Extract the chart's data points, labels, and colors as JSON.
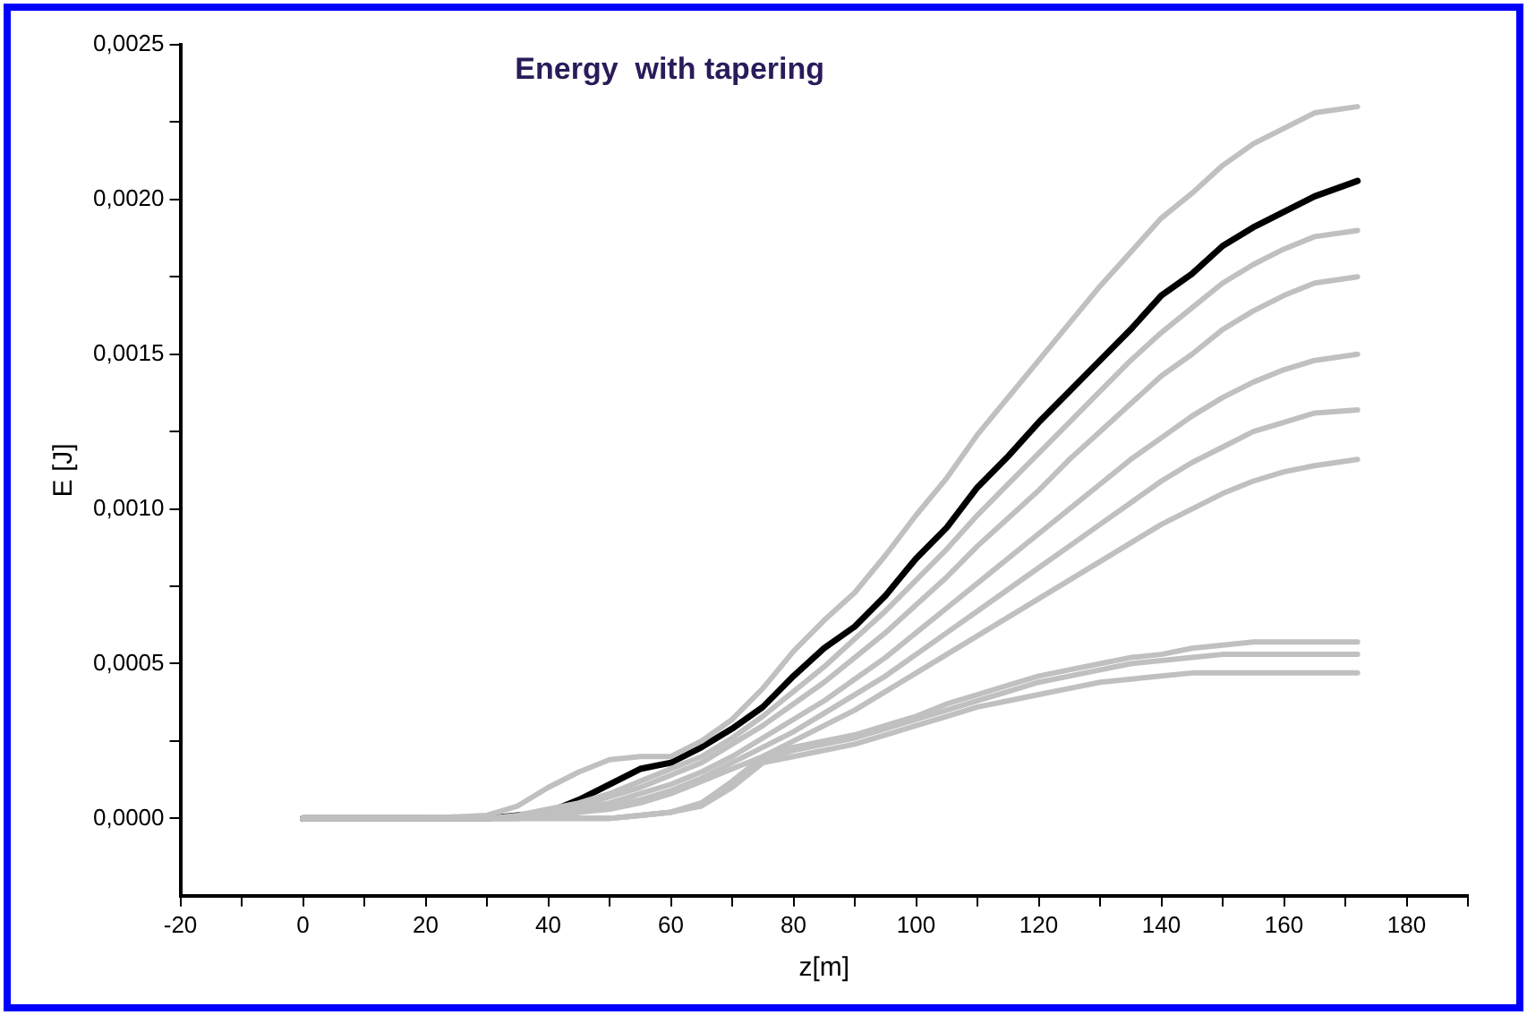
{
  "chart_data": {
    "type": "line",
    "title": "Energy  with tapering",
    "xlabel": "z[m]",
    "ylabel": "E [J]",
    "x": [
      0,
      10,
      20,
      30,
      35,
      40,
      45,
      50,
      55,
      60,
      65,
      70,
      75,
      80,
      85,
      90,
      95,
      100,
      105,
      110,
      115,
      120,
      125,
      130,
      135,
      140,
      145,
      150,
      155,
      160,
      165,
      172
    ],
    "series": [
      {
        "color": "#c0c0c0",
        "values": [
          0,
          0,
          0,
          1e-05,
          4e-05,
          0.0001,
          0.00015,
          0.00019,
          0.0002,
          0.0002,
          0.00025,
          0.00032,
          0.00042,
          0.00054,
          0.00064,
          0.00073,
          0.00085,
          0.00098,
          0.0011,
          0.00124,
          0.00136,
          0.00148,
          0.0016,
          0.00172,
          0.00183,
          0.00194,
          0.00202,
          0.00211,
          0.00218,
          0.00223,
          0.00228,
          0.0023
        ]
      },
      {
        "color": "#c0c0c0",
        "values": [
          0,
          0,
          0,
          0,
          1e-05,
          3e-05,
          5e-05,
          8e-05,
          0.00012,
          0.00016,
          0.0002,
          0.00026,
          0.00033,
          0.00041,
          0.00049,
          0.00058,
          0.00067,
          0.00077,
          0.00087,
          0.00098,
          0.00108,
          0.00118,
          0.00128,
          0.00138,
          0.00148,
          0.00157,
          0.00165,
          0.00173,
          0.00179,
          0.00184,
          0.00188,
          0.0019
        ]
      },
      {
        "color": "#c0c0c0",
        "values": [
          0,
          0,
          0,
          0,
          0,
          2e-05,
          4e-05,
          7e-05,
          0.0001,
          0.00014,
          0.00018,
          0.00024,
          0.0003,
          0.00037,
          0.00044,
          0.00052,
          0.0006,
          0.00069,
          0.00078,
          0.00088,
          0.00097,
          0.00106,
          0.00116,
          0.00125,
          0.00134,
          0.00143,
          0.0015,
          0.00158,
          0.00164,
          0.00169,
          0.00173,
          0.00175
        ]
      },
      {
        "color": "#c0c0c0",
        "values": [
          0,
          0,
          0,
          0,
          0,
          1e-05,
          3e-05,
          5e-05,
          8e-05,
          0.00011,
          0.00015,
          0.0002,
          0.00026,
          0.00032,
          0.00038,
          0.00045,
          0.00052,
          0.0006,
          0.00068,
          0.00076,
          0.00084,
          0.00092,
          0.001,
          0.00108,
          0.00116,
          0.00123,
          0.0013,
          0.00136,
          0.00141,
          0.00145,
          0.00148,
          0.0015
        ]
      },
      {
        "color": "#c0c0c0",
        "values": [
          0,
          0,
          0,
          0,
          0,
          1e-05,
          2e-05,
          4e-05,
          6e-05,
          9e-05,
          0.00013,
          0.00018,
          0.00023,
          0.00028,
          0.00034,
          0.0004,
          0.00046,
          0.00053,
          0.0006,
          0.00067,
          0.00074,
          0.00081,
          0.00088,
          0.00095,
          0.00102,
          0.00109,
          0.00115,
          0.0012,
          0.00125,
          0.00128,
          0.00131,
          0.00132
        ]
      },
      {
        "color": "#c0c0c0",
        "values": [
          0,
          0,
          0,
          0,
          0,
          1e-05,
          2e-05,
          3e-05,
          5e-05,
          8e-05,
          0.00012,
          0.00016,
          0.0002,
          0.00025,
          0.0003,
          0.00035,
          0.00041,
          0.00047,
          0.00053,
          0.00059,
          0.00065,
          0.00071,
          0.00077,
          0.00083,
          0.00089,
          0.00095,
          0.001,
          0.00105,
          0.00109,
          0.00112,
          0.00114,
          0.00116
        ]
      },
      {
        "color": "#c0c0c0",
        "values": [
          0,
          0,
          0,
          0,
          0,
          0,
          0,
          0,
          1e-05,
          2e-05,
          5e-05,
          0.00012,
          0.0002,
          0.00023,
          0.00025,
          0.00027,
          0.0003,
          0.00033,
          0.00037,
          0.0004,
          0.00043,
          0.00046,
          0.00048,
          0.0005,
          0.00052,
          0.00053,
          0.00055,
          0.00056,
          0.00057,
          0.00057,
          0.00057,
          0.00057
        ]
      },
      {
        "color": "#c0c0c0",
        "values": [
          0,
          0,
          0,
          0,
          0,
          0,
          0,
          0,
          1e-05,
          2e-05,
          5e-05,
          0.00011,
          0.00019,
          0.00022,
          0.00024,
          0.00026,
          0.00029,
          0.00032,
          0.00035,
          0.00038,
          0.00041,
          0.00044,
          0.00046,
          0.00048,
          0.0005,
          0.00051,
          0.00052,
          0.00053,
          0.00053,
          0.00053,
          0.00053,
          0.00053
        ]
      },
      {
        "color": "#c0c0c0",
        "values": [
          0,
          0,
          0,
          0,
          0,
          0,
          0,
          0,
          1e-05,
          2e-05,
          4e-05,
          0.0001,
          0.00018,
          0.0002,
          0.00022,
          0.00024,
          0.00027,
          0.0003,
          0.00033,
          0.00036,
          0.00038,
          0.0004,
          0.00042,
          0.00044,
          0.00045,
          0.00046,
          0.00047,
          0.00047,
          0.00047,
          0.00047,
          0.00047,
          0.00047
        ]
      },
      {
        "color": "#000000",
        "values": [
          0,
          0,
          0,
          0,
          1e-05,
          2e-05,
          6e-05,
          0.00011,
          0.00016,
          0.00018,
          0.00023,
          0.00029,
          0.00036,
          0.00046,
          0.00055,
          0.00062,
          0.00072,
          0.00084,
          0.00094,
          0.00107,
          0.00117,
          0.00128,
          0.00138,
          0.00148,
          0.00158,
          0.00169,
          0.00176,
          0.00185,
          0.00191,
          0.00196,
          0.00201,
          0.00206
        ]
      }
    ],
    "xlim": [
      -20,
      190
    ],
    "xticks": [
      {
        "value": -20,
        "label": "-20"
      },
      {
        "value": -10,
        "label": null
      },
      0,
      {
        "value": 10,
        "label": null
      },
      20,
      {
        "value": 30,
        "label": null
      },
      40,
      {
        "value": 50,
        "label": null
      },
      60,
      {
        "value": 70,
        "label": null
      },
      80,
      {
        "value": 90,
        "label": null
      },
      100,
      {
        "value": 110,
        "label": null
      },
      120,
      {
        "value": 130,
        "label": null
      },
      140,
      {
        "value": 150,
        "label": null
      },
      160,
      {
        "value": 170,
        "label": null
      },
      180,
      {
        "value": 190,
        "label": null
      }
    ],
    "ylim": [
      -0.00025,
      0.0025
    ],
    "yticks": [
      {
        "value": 0,
        "label": "0,0000"
      },
      {
        "value": 0.00025,
        "label": null
      },
      {
        "value": 0.0005,
        "label": "0,0005"
      },
      {
        "value": 0.00075,
        "label": null
      },
      {
        "value": 0.001,
        "label": "0,0010"
      },
      {
        "value": 0.00125,
        "label": null
      },
      {
        "value": 0.0015,
        "label": "0,0015"
      },
      {
        "value": 0.00175,
        "label": null
      },
      {
        "value": 0.002,
        "label": "0,0020"
      },
      {
        "value": 0.00225,
        "label": null
      },
      {
        "value": 0.0025,
        "label": "0,0025"
      }
    ],
    "grid": false,
    "legend": false,
    "marker": "none",
    "line_style": "solid"
  }
}
